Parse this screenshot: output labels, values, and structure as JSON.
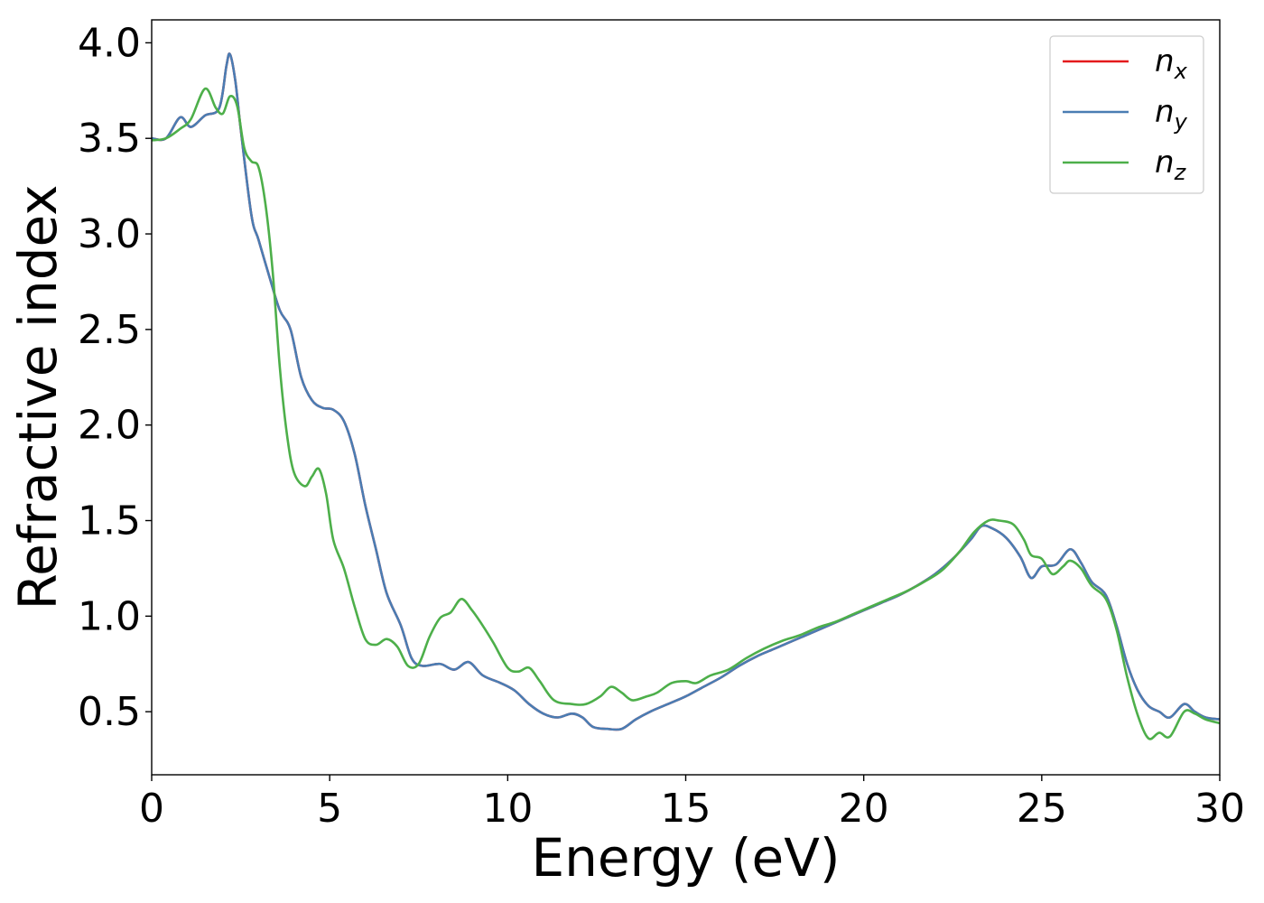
{
  "chart_data": {
    "type": "line",
    "title": "",
    "xlabel": "Energy (eV)",
    "ylabel": "Refractive index",
    "xlim": [
      0,
      30
    ],
    "ylim": [
      0.17,
      4.12
    ],
    "xticks": [
      0,
      5,
      10,
      15,
      20,
      25,
      30
    ],
    "yticks": [
      0.5,
      1.0,
      1.5,
      2.0,
      2.5,
      3.0,
      3.5,
      4.0
    ],
    "xtick_labels": [
      "0",
      "5",
      "10",
      "15",
      "20",
      "25",
      "30"
    ],
    "ytick_labels": [
      "0.5",
      "1.0",
      "1.5",
      "2.0",
      "2.5",
      "3.0",
      "3.5",
      "4.0"
    ],
    "grid": false,
    "legend": "top-right",
    "series": [
      {
        "name": "n_x",
        "label_base": "n",
        "label_sub": "x",
        "color": "#e41a1c",
        "points": [
          [
            0,
            3.5
          ],
          [
            0.4,
            3.5
          ],
          [
            0.8,
            3.61
          ],
          [
            1.1,
            3.56
          ],
          [
            1.5,
            3.62
          ],
          [
            1.9,
            3.66
          ],
          [
            2.1,
            3.88
          ],
          [
            2.2,
            3.94
          ],
          [
            2.35,
            3.8
          ],
          [
            2.5,
            3.55
          ],
          [
            2.8,
            3.1
          ],
          [
            3.0,
            2.97
          ],
          [
            3.3,
            2.78
          ],
          [
            3.6,
            2.6
          ],
          [
            3.9,
            2.5
          ],
          [
            4.2,
            2.25
          ],
          [
            4.5,
            2.13
          ],
          [
            4.8,
            2.09
          ],
          [
            5.1,
            2.08
          ],
          [
            5.4,
            2.02
          ],
          [
            5.7,
            1.85
          ],
          [
            6.0,
            1.58
          ],
          [
            6.3,
            1.35
          ],
          [
            6.6,
            1.12
          ],
          [
            7.0,
            0.95
          ],
          [
            7.3,
            0.78
          ],
          [
            7.6,
            0.74
          ],
          [
            8.1,
            0.75
          ],
          [
            8.5,
            0.72
          ],
          [
            8.9,
            0.76
          ],
          [
            9.3,
            0.69
          ],
          [
            9.8,
            0.65
          ],
          [
            10.2,
            0.61
          ],
          [
            10.6,
            0.54
          ],
          [
            11.0,
            0.49
          ],
          [
            11.4,
            0.47
          ],
          [
            11.8,
            0.49
          ],
          [
            12.1,
            0.47
          ],
          [
            12.4,
            0.42
          ],
          [
            12.8,
            0.41
          ],
          [
            13.2,
            0.41
          ],
          [
            13.6,
            0.46
          ],
          [
            14.0,
            0.5
          ],
          [
            14.5,
            0.54
          ],
          [
            15.0,
            0.58
          ],
          [
            15.5,
            0.63
          ],
          [
            16.0,
            0.68
          ],
          [
            16.5,
            0.74
          ],
          [
            17.0,
            0.79
          ],
          [
            17.5,
            0.83
          ],
          [
            18.0,
            0.87
          ],
          [
            18.5,
            0.91
          ],
          [
            19.0,
            0.95
          ],
          [
            19.5,
            0.99
          ],
          [
            20.0,
            1.03
          ],
          [
            20.5,
            1.07
          ],
          [
            21.0,
            1.11
          ],
          [
            21.5,
            1.16
          ],
          [
            22.0,
            1.22
          ],
          [
            22.5,
            1.3
          ],
          [
            23.0,
            1.4
          ],
          [
            23.3,
            1.47
          ],
          [
            23.6,
            1.46
          ],
          [
            24.0,
            1.41
          ],
          [
            24.4,
            1.31
          ],
          [
            24.7,
            1.2
          ],
          [
            25.0,
            1.26
          ],
          [
            25.4,
            1.27
          ],
          [
            25.8,
            1.35
          ],
          [
            26.1,
            1.28
          ],
          [
            26.4,
            1.18
          ],
          [
            26.8,
            1.11
          ],
          [
            27.1,
            0.95
          ],
          [
            27.4,
            0.75
          ],
          [
            27.7,
            0.61
          ],
          [
            28.0,
            0.53
          ],
          [
            28.3,
            0.5
          ],
          [
            28.6,
            0.47
          ],
          [
            29.0,
            0.54
          ],
          [
            29.3,
            0.5
          ],
          [
            29.6,
            0.47
          ],
          [
            30.0,
            0.46
          ]
        ]
      },
      {
        "name": "n_y",
        "label_base": "n",
        "label_sub": "y",
        "color": "#4a7db3",
        "points": [
          [
            0,
            3.5
          ],
          [
            0.4,
            3.5
          ],
          [
            0.8,
            3.61
          ],
          [
            1.1,
            3.56
          ],
          [
            1.5,
            3.62
          ],
          [
            1.9,
            3.66
          ],
          [
            2.1,
            3.88
          ],
          [
            2.2,
            3.94
          ],
          [
            2.35,
            3.8
          ],
          [
            2.5,
            3.55
          ],
          [
            2.8,
            3.1
          ],
          [
            3.0,
            2.97
          ],
          [
            3.3,
            2.78
          ],
          [
            3.6,
            2.6
          ],
          [
            3.9,
            2.5
          ],
          [
            4.2,
            2.25
          ],
          [
            4.5,
            2.13
          ],
          [
            4.8,
            2.09
          ],
          [
            5.1,
            2.08
          ],
          [
            5.4,
            2.02
          ],
          [
            5.7,
            1.85
          ],
          [
            6.0,
            1.58
          ],
          [
            6.3,
            1.35
          ],
          [
            6.6,
            1.12
          ],
          [
            7.0,
            0.95
          ],
          [
            7.3,
            0.78
          ],
          [
            7.6,
            0.74
          ],
          [
            8.1,
            0.75
          ],
          [
            8.5,
            0.72
          ],
          [
            8.9,
            0.76
          ],
          [
            9.3,
            0.69
          ],
          [
            9.8,
            0.65
          ],
          [
            10.2,
            0.61
          ],
          [
            10.6,
            0.54
          ],
          [
            11.0,
            0.49
          ],
          [
            11.4,
            0.47
          ],
          [
            11.8,
            0.49
          ],
          [
            12.1,
            0.47
          ],
          [
            12.4,
            0.42
          ],
          [
            12.8,
            0.41
          ],
          [
            13.2,
            0.41
          ],
          [
            13.6,
            0.46
          ],
          [
            14.0,
            0.5
          ],
          [
            14.5,
            0.54
          ],
          [
            15.0,
            0.58
          ],
          [
            15.5,
            0.63
          ],
          [
            16.0,
            0.68
          ],
          [
            16.5,
            0.74
          ],
          [
            17.0,
            0.79
          ],
          [
            17.5,
            0.83
          ],
          [
            18.0,
            0.87
          ],
          [
            18.5,
            0.91
          ],
          [
            19.0,
            0.95
          ],
          [
            19.5,
            0.99
          ],
          [
            20.0,
            1.03
          ],
          [
            20.5,
            1.07
          ],
          [
            21.0,
            1.11
          ],
          [
            21.5,
            1.16
          ],
          [
            22.0,
            1.22
          ],
          [
            22.5,
            1.3
          ],
          [
            23.0,
            1.4
          ],
          [
            23.3,
            1.47
          ],
          [
            23.6,
            1.46
          ],
          [
            24.0,
            1.41
          ],
          [
            24.4,
            1.31
          ],
          [
            24.7,
            1.2
          ],
          [
            25.0,
            1.26
          ],
          [
            25.4,
            1.27
          ],
          [
            25.8,
            1.35
          ],
          [
            26.1,
            1.28
          ],
          [
            26.4,
            1.18
          ],
          [
            26.8,
            1.11
          ],
          [
            27.1,
            0.95
          ],
          [
            27.4,
            0.75
          ],
          [
            27.7,
            0.61
          ],
          [
            28.0,
            0.53
          ],
          [
            28.3,
            0.5
          ],
          [
            28.6,
            0.47
          ],
          [
            29.0,
            0.54
          ],
          [
            29.3,
            0.5
          ],
          [
            29.6,
            0.47
          ],
          [
            30.0,
            0.46
          ]
        ]
      },
      {
        "name": "n_z",
        "label_base": "n",
        "label_sub": "z",
        "color": "#4daf4a",
        "points": [
          [
            0,
            3.49
          ],
          [
            0.4,
            3.5
          ],
          [
            0.8,
            3.55
          ],
          [
            1.1,
            3.6
          ],
          [
            1.5,
            3.76
          ],
          [
            1.8,
            3.66
          ],
          [
            2.0,
            3.63
          ],
          [
            2.2,
            3.72
          ],
          [
            2.4,
            3.67
          ],
          [
            2.6,
            3.45
          ],
          [
            2.8,
            3.38
          ],
          [
            3.0,
            3.35
          ],
          [
            3.2,
            3.15
          ],
          [
            3.4,
            2.8
          ],
          [
            3.6,
            2.3
          ],
          [
            3.8,
            1.95
          ],
          [
            4.0,
            1.75
          ],
          [
            4.3,
            1.68
          ],
          [
            4.5,
            1.73
          ],
          [
            4.7,
            1.77
          ],
          [
            4.9,
            1.64
          ],
          [
            5.1,
            1.4
          ],
          [
            5.4,
            1.25
          ],
          [
            5.7,
            1.05
          ],
          [
            6.0,
            0.88
          ],
          [
            6.3,
            0.85
          ],
          [
            6.6,
            0.88
          ],
          [
            6.9,
            0.84
          ],
          [
            7.2,
            0.74
          ],
          [
            7.5,
            0.75
          ],
          [
            7.8,
            0.89
          ],
          [
            8.1,
            0.99
          ],
          [
            8.4,
            1.02
          ],
          [
            8.7,
            1.09
          ],
          [
            9.0,
            1.03
          ],
          [
            9.3,
            0.95
          ],
          [
            9.6,
            0.86
          ],
          [
            10.0,
            0.73
          ],
          [
            10.3,
            0.71
          ],
          [
            10.6,
            0.73
          ],
          [
            10.9,
            0.66
          ],
          [
            11.3,
            0.56
          ],
          [
            11.8,
            0.54
          ],
          [
            12.2,
            0.54
          ],
          [
            12.6,
            0.58
          ],
          [
            12.9,
            0.63
          ],
          [
            13.2,
            0.6
          ],
          [
            13.5,
            0.56
          ],
          [
            13.9,
            0.58
          ],
          [
            14.2,
            0.6
          ],
          [
            14.6,
            0.65
          ],
          [
            15.0,
            0.66
          ],
          [
            15.3,
            0.65
          ],
          [
            15.7,
            0.69
          ],
          [
            16.2,
            0.72
          ],
          [
            16.7,
            0.78
          ],
          [
            17.2,
            0.83
          ],
          [
            17.7,
            0.87
          ],
          [
            18.2,
            0.9
          ],
          [
            18.7,
            0.94
          ],
          [
            19.2,
            0.97
          ],
          [
            19.7,
            1.01
          ],
          [
            20.2,
            1.05
          ],
          [
            20.7,
            1.09
          ],
          [
            21.2,
            1.13
          ],
          [
            21.7,
            1.18
          ],
          [
            22.2,
            1.24
          ],
          [
            22.7,
            1.34
          ],
          [
            23.1,
            1.44
          ],
          [
            23.5,
            1.5
          ],
          [
            23.8,
            1.5
          ],
          [
            24.2,
            1.48
          ],
          [
            24.5,
            1.4
          ],
          [
            24.7,
            1.32
          ],
          [
            25.0,
            1.3
          ],
          [
            25.3,
            1.22
          ],
          [
            25.6,
            1.26
          ],
          [
            25.8,
            1.29
          ],
          [
            26.1,
            1.25
          ],
          [
            26.4,
            1.16
          ],
          [
            26.8,
            1.09
          ],
          [
            27.1,
            0.93
          ],
          [
            27.4,
            0.68
          ],
          [
            27.7,
            0.48
          ],
          [
            28.0,
            0.36
          ],
          [
            28.3,
            0.39
          ],
          [
            28.6,
            0.37
          ],
          [
            29.0,
            0.5
          ],
          [
            29.3,
            0.49
          ],
          [
            29.6,
            0.46
          ],
          [
            30.0,
            0.44
          ]
        ]
      }
    ]
  }
}
